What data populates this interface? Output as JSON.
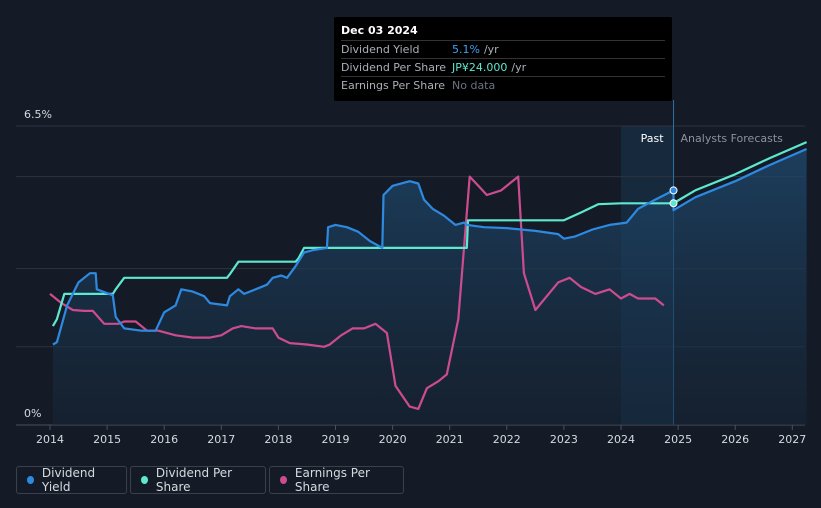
{
  "chart_data": {
    "type": "line",
    "ylim": [
      0,
      6.5
    ],
    "y_ticks": [
      "6.5%",
      "0%"
    ],
    "x_ticks": [
      "2014",
      "2015",
      "2016",
      "2017",
      "2018",
      "2019",
      "2020",
      "2021",
      "2022",
      "2023",
      "2024",
      "2025",
      "2026",
      "2027"
    ],
    "past_label": "Past",
    "forecast_label": "Analysts Forecasts",
    "past_region": [
      2024.0,
      2024.92
    ],
    "series": [
      {
        "name": "Dividend Yield",
        "color": "#2d8ae0",
        "points": [
          [
            2014.05,
            1.75
          ],
          [
            2014.12,
            1.8
          ],
          [
            2014.3,
            2.6
          ],
          [
            2014.5,
            3.1
          ],
          [
            2014.7,
            3.3
          ],
          [
            2014.8,
            3.3
          ],
          [
            2014.82,
            2.95
          ],
          [
            2015.1,
            2.82
          ],
          [
            2015.15,
            2.35
          ],
          [
            2015.3,
            2.1
          ],
          [
            2015.6,
            2.05
          ],
          [
            2015.8,
            2.05
          ],
          [
            2015.85,
            2.05
          ],
          [
            2016.0,
            2.45
          ],
          [
            2016.2,
            2.6
          ],
          [
            2016.3,
            2.95
          ],
          [
            2016.5,
            2.9
          ],
          [
            2016.7,
            2.8
          ],
          [
            2016.8,
            2.65
          ],
          [
            2017.1,
            2.6
          ],
          [
            2017.15,
            2.8
          ],
          [
            2017.3,
            2.95
          ],
          [
            2017.4,
            2.85
          ],
          [
            2017.6,
            2.95
          ],
          [
            2017.8,
            3.05
          ],
          [
            2017.9,
            3.2
          ],
          [
            2018.05,
            3.25
          ],
          [
            2018.15,
            3.2
          ],
          [
            2018.3,
            3.45
          ],
          [
            2018.45,
            3.75
          ],
          [
            2018.6,
            3.8
          ],
          [
            2018.85,
            3.85
          ],
          [
            2018.87,
            4.3
          ],
          [
            2019.0,
            4.35
          ],
          [
            2019.2,
            4.3
          ],
          [
            2019.4,
            4.2
          ],
          [
            2019.6,
            4.0
          ],
          [
            2019.82,
            3.85
          ],
          [
            2019.84,
            5.0
          ],
          [
            2020.0,
            5.2
          ],
          [
            2020.3,
            5.3
          ],
          [
            2020.45,
            5.25
          ],
          [
            2020.55,
            4.9
          ],
          [
            2020.7,
            4.7
          ],
          [
            2020.9,
            4.55
          ],
          [
            2021.1,
            4.35
          ],
          [
            2021.25,
            4.4
          ],
          [
            2021.3,
            4.35
          ],
          [
            2021.6,
            4.3
          ],
          [
            2022.0,
            4.28
          ],
          [
            2022.5,
            4.22
          ],
          [
            2022.9,
            4.15
          ],
          [
            2023.0,
            4.05
          ],
          [
            2023.2,
            4.1
          ],
          [
            2023.5,
            4.25
          ],
          [
            2023.8,
            4.35
          ],
          [
            2024.1,
            4.4
          ],
          [
            2024.3,
            4.7
          ],
          [
            2024.6,
            4.9
          ],
          [
            2024.92,
            5.1
          ]
        ]
      },
      {
        "name": "Dividend Per Share",
        "color": "#5de8d0",
        "points": [
          [
            2014.05,
            2.15
          ],
          [
            2014.12,
            2.3
          ],
          [
            2014.25,
            2.85
          ],
          [
            2014.5,
            2.85
          ],
          [
            2014.8,
            2.85
          ],
          [
            2015.1,
            2.85
          ],
          [
            2015.15,
            2.95
          ],
          [
            2015.3,
            3.2
          ],
          [
            2015.6,
            3.2
          ],
          [
            2017.1,
            3.2
          ],
          [
            2017.15,
            3.28
          ],
          [
            2017.3,
            3.55
          ],
          [
            2018.3,
            3.55
          ],
          [
            2018.35,
            3.62
          ],
          [
            2018.45,
            3.85
          ],
          [
            2021.3,
            3.85
          ],
          [
            2021.32,
            4.45
          ],
          [
            2022.9,
            4.45
          ],
          [
            2023.0,
            4.45
          ],
          [
            2023.3,
            4.62
          ],
          [
            2023.6,
            4.8
          ],
          [
            2024.0,
            4.82
          ],
          [
            2024.92,
            4.82
          ],
          [
            2025.0,
            4.88
          ],
          [
            2025.3,
            5.1
          ],
          [
            2026.0,
            5.45
          ],
          [
            2026.6,
            5.8
          ],
          [
            2027.25,
            6.15
          ]
        ]
      },
      {
        "name": "Earnings Per Share",
        "color": "#cc4c8f",
        "points": [
          [
            2014.0,
            2.85
          ],
          [
            2014.2,
            2.65
          ],
          [
            2014.4,
            2.5
          ],
          [
            2014.6,
            2.48
          ],
          [
            2014.75,
            2.48
          ],
          [
            2014.95,
            2.2
          ],
          [
            2015.2,
            2.2
          ],
          [
            2015.3,
            2.25
          ],
          [
            2015.5,
            2.25
          ],
          [
            2015.7,
            2.05
          ],
          [
            2015.9,
            2.05
          ],
          [
            2016.2,
            1.95
          ],
          [
            2016.5,
            1.9
          ],
          [
            2016.8,
            1.9
          ],
          [
            2017.0,
            1.95
          ],
          [
            2017.2,
            2.1
          ],
          [
            2017.35,
            2.15
          ],
          [
            2017.6,
            2.1
          ],
          [
            2017.9,
            2.1
          ],
          [
            2018.0,
            1.9
          ],
          [
            2018.2,
            1.78
          ],
          [
            2018.5,
            1.75
          ],
          [
            2018.8,
            1.7
          ],
          [
            2018.9,
            1.75
          ],
          [
            2019.1,
            1.95
          ],
          [
            2019.3,
            2.1
          ],
          [
            2019.5,
            2.1
          ],
          [
            2019.7,
            2.2
          ],
          [
            2019.9,
            2.0
          ],
          [
            2020.05,
            0.85
          ],
          [
            2020.3,
            0.4
          ],
          [
            2020.45,
            0.35
          ],
          [
            2020.6,
            0.8
          ],
          [
            2020.8,
            0.95
          ],
          [
            2020.95,
            1.1
          ],
          [
            2021.15,
            2.3
          ],
          [
            2021.35,
            5.4
          ],
          [
            2021.5,
            5.2
          ],
          [
            2021.65,
            5.0
          ],
          [
            2021.9,
            5.1
          ],
          [
            2022.2,
            5.4
          ],
          [
            2022.3,
            3.3
          ],
          [
            2022.5,
            2.5
          ],
          [
            2022.7,
            2.8
          ],
          [
            2022.9,
            3.1
          ],
          [
            2023.1,
            3.2
          ],
          [
            2023.3,
            3.0
          ],
          [
            2023.55,
            2.85
          ],
          [
            2023.8,
            2.95
          ],
          [
            2024.0,
            2.75
          ],
          [
            2024.15,
            2.85
          ],
          [
            2024.3,
            2.75
          ],
          [
            2024.6,
            2.75
          ],
          [
            2024.75,
            2.6
          ]
        ]
      }
    ]
  },
  "tooltip": {
    "date": "Dec 03 2024",
    "rows": [
      {
        "label": "Dividend Yield",
        "value": "5.1%",
        "unit": "/yr"
      },
      {
        "label": "Dividend Per Share",
        "value": "JP¥24.000",
        "unit": "/yr"
      },
      {
        "label": "Earnings Per Share",
        "value": "No data"
      }
    ]
  },
  "legend": [
    {
      "label": "Dividend Yield",
      "color": "#2d8ae0"
    },
    {
      "label": "Dividend Per Share",
      "color": "#5de8d0"
    },
    {
      "label": "Earnings Per Share",
      "color": "#cc4c8f"
    }
  ]
}
